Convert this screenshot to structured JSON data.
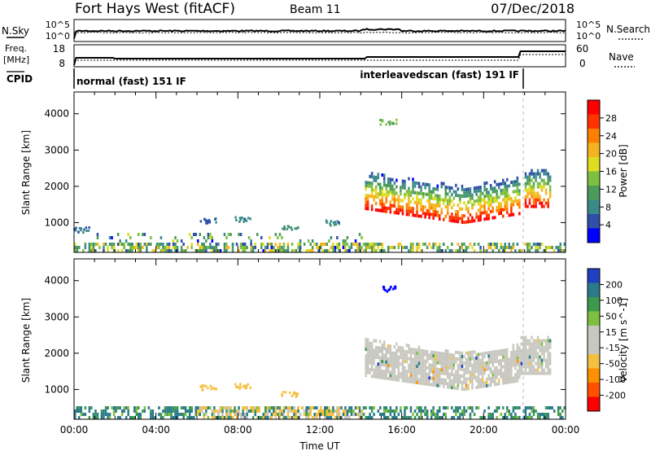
{
  "header": {
    "title": "Fort Hays West (fitACF)",
    "beam": "Beam 11",
    "date": "07/Dec/2018"
  },
  "noise_panel": {
    "left_label": "N.Sky",
    "right_label": "N.Search",
    "ticks_left": [
      "10^5",
      "10^0"
    ],
    "ticks_right": [
      "10^5",
      "10^0"
    ]
  },
  "freq_panel": {
    "left_label_1": "Freq.",
    "left_label_2": "[MHz]",
    "right_label": "Nave",
    "ticks_left": [
      "18",
      "8"
    ],
    "ticks_right": [
      "60",
      "0"
    ]
  },
  "cpid": {
    "label": "CPID",
    "mode1": "normal (fast) 151 IF",
    "mode2": "interleavedscan (fast) 191 IF"
  },
  "colors": {
    "power": [
      "#0000ff",
      "#2f4fa8",
      "#3a8a8a",
      "#4c9a5c",
      "#7dc040",
      "#dddd22",
      "#f5b41e",
      "#ff8000",
      "#ff3300",
      "#ff0000"
    ],
    "velocity": [
      "#ff0000",
      "#ff5000",
      "#ff9000",
      "#f5c040",
      "#c8c8c0",
      "#c8c8c0",
      "#7dc040",
      "#3d9a4c",
      "#2a7a8a",
      "#2040c0",
      "#0000ff"
    ],
    "ground_scatter": "#c8c8c0"
  },
  "chart_data": [
    {
      "type": "heatmap",
      "name": "power",
      "xlabel": "",
      "ylabel": "Slant Range [km]",
      "ylim": [
        180,
        4600
      ],
      "xlim_hours": [
        0,
        24
      ],
      "colorbar_label": "Power [dB]",
      "colorbar_ticks": [
        "4",
        "8",
        "12",
        "16",
        "20",
        "24",
        "28"
      ],
      "colorbar_range": [
        0,
        32
      ],
      "regions": [
        {
          "t0": 0,
          "t1": 24,
          "r_lo": 180,
          "r_hi": 400,
          "value": 14,
          "density": 0.55
        },
        {
          "t0": 0,
          "t1": 14,
          "r_lo": 180,
          "r_hi": 700,
          "value": 10,
          "density": 0.15
        },
        {
          "t0": 14.2,
          "t1": 21.8,
          "r_lo": 900,
          "r_hi": 2300,
          "value": 16,
          "density": 0.6
        },
        {
          "t0": 22,
          "t1": 23.3,
          "r_lo": 1500,
          "r_hi": 2600,
          "value": 18,
          "density": 0.6
        }
      ],
      "patches": [
        {
          "t": 0.3,
          "r": 830,
          "value": 6
        },
        {
          "t": 6.5,
          "r": 1080,
          "value": 6
        },
        {
          "t": 8.2,
          "r": 1120,
          "value": 8
        },
        {
          "t": 10.5,
          "r": 900,
          "value": 10
        },
        {
          "t": 12.5,
          "r": 1020,
          "value": 8
        },
        {
          "t": 15.3,
          "r": 3800,
          "value": 12
        }
      ]
    },
    {
      "type": "heatmap",
      "name": "velocity",
      "xlabel": "Time UT",
      "ylabel": "Slant Range [km]",
      "ylim": [
        180,
        4600
      ],
      "xlim_hours": [
        0,
        24
      ],
      "x_ticks": [
        "00:00",
        "04:00",
        "08:00",
        "12:00",
        "16:00",
        "20:00",
        "00:00"
      ],
      "colorbar_label": "Velocity [m s^-1]",
      "colorbar_ticks": [
        "-200",
        "-100",
        "-50",
        "-15",
        "15",
        "50",
        "100",
        "200"
      ],
      "regions": [
        {
          "t0": 0,
          "t1": 24,
          "r_lo": 180,
          "r_hi": 500,
          "value": 30,
          "density": 0.55
        },
        {
          "t0": 6,
          "t1": 14,
          "r_lo": 180,
          "r_hi": 450,
          "value": -30,
          "density": 0.4
        },
        {
          "t0": 14.2,
          "t1": 23.3,
          "r_lo": 900,
          "r_hi": 2500,
          "value": 0,
          "density": 0.85
        }
      ],
      "patches": [
        {
          "t": 6.5,
          "r": 1080,
          "value": -40
        },
        {
          "t": 8.2,
          "r": 1120,
          "value": -40
        },
        {
          "t": 10.5,
          "r": 900,
          "value": -40
        },
        {
          "t": 15.3,
          "r": 3800,
          "value": 200
        }
      ]
    }
  ]
}
